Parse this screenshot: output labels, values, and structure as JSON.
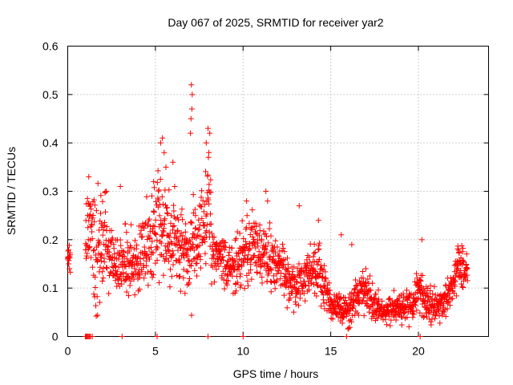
{
  "chart_data": {
    "type": "scatter",
    "title": "Day 067 of 2025, SRMTID for receiver yar2",
    "xlabel": "GPS time / hours",
    "ylabel": "SRMTID / TECUs",
    "xlim": [
      0,
      24
    ],
    "ylim": [
      0,
      0.6
    ],
    "xticks": [
      0,
      5,
      10,
      15,
      20
    ],
    "yticks": [
      0,
      0.1,
      0.2,
      0.3,
      0.4,
      0.5,
      0.6
    ],
    "xtick_labels": [
      "0",
      "5",
      "10",
      "15",
      "20"
    ],
    "ytick_labels": [
      "0",
      "0.1",
      "0.2",
      "0.3",
      "0.4",
      "0.5",
      "0.6"
    ],
    "grid": true,
    "marker": "+",
    "series_color": "#ff0000",
    "profile_x": [
      0,
      1,
      1.1,
      1.3,
      1.6,
      2,
      2.3,
      2.6,
      3,
      3.4,
      3.8,
      4.2,
      4.6,
      5,
      5.3,
      5.6,
      6,
      6.4,
      6.8,
      7.1,
      7.4,
      7.7,
      8,
      8.3,
      8.7,
      9,
      9.5,
      10,
      10.5,
      11,
      11.5,
      12,
      12.5,
      13,
      13.5,
      14,
      14.5,
      15,
      15.5,
      16,
      16.5,
      17,
      17.5,
      18,
      18.5,
      19,
      19.5,
      20,
      20.5,
      21,
      21.5,
      22,
      22.3,
      22.7
    ],
    "profile_y": [
      0.16,
      0.2,
      0.24,
      0.22,
      0.17,
      0.2,
      0.18,
      0.15,
      0.14,
      0.15,
      0.15,
      0.17,
      0.21,
      0.23,
      0.25,
      0.22,
      0.19,
      0.18,
      0.17,
      0.19,
      0.18,
      0.22,
      0.27,
      0.18,
      0.16,
      0.15,
      0.15,
      0.17,
      0.19,
      0.18,
      0.16,
      0.15,
      0.12,
      0.1,
      0.12,
      0.14,
      0.12,
      0.07,
      0.06,
      0.05,
      0.09,
      0.09,
      0.07,
      0.05,
      0.06,
      0.06,
      0.06,
      0.1,
      0.07,
      0.06,
      0.07,
      0.1,
      0.15,
      0.14
    ],
    "profile_spread": [
      0.02,
      0.05,
      0.06,
      0.07,
      0.08,
      0.07,
      0.06,
      0.05,
      0.05,
      0.05,
      0.05,
      0.05,
      0.06,
      0.07,
      0.08,
      0.07,
      0.06,
      0.05,
      0.06,
      0.07,
      0.06,
      0.07,
      0.08,
      0.04,
      0.04,
      0.04,
      0.04,
      0.05,
      0.05,
      0.05,
      0.05,
      0.04,
      0.04,
      0.03,
      0.03,
      0.04,
      0.04,
      0.02,
      0.02,
      0.02,
      0.03,
      0.03,
      0.02,
      0.02,
      0.02,
      0.02,
      0.02,
      0.03,
      0.03,
      0.02,
      0.02,
      0.03,
      0.03,
      0.03
    ],
    "points": [
      {
        "x": 7.05,
        "y": 0.52
      },
      {
        "x": 7.1,
        "y": 0.5
      },
      {
        "x": 7.08,
        "y": 0.47
      },
      {
        "x": 7.03,
        "y": 0.45
      },
      {
        "x": 7.0,
        "y": 0.42
      },
      {
        "x": 8.0,
        "y": 0.43
      },
      {
        "x": 8.1,
        "y": 0.42
      },
      {
        "x": 7.9,
        "y": 0.4
      },
      {
        "x": 8.05,
        "y": 0.38
      },
      {
        "x": 5.4,
        "y": 0.41
      },
      {
        "x": 5.3,
        "y": 0.4
      },
      {
        "x": 5.5,
        "y": 0.38
      },
      {
        "x": 5.6,
        "y": 0.35
      },
      {
        "x": 6.0,
        "y": 0.36
      },
      {
        "x": 6.1,
        "y": 0.31
      },
      {
        "x": 4.9,
        "y": 0.32
      },
      {
        "x": 1.2,
        "y": 0.33
      },
      {
        "x": 2.2,
        "y": 0.3
      },
      {
        "x": 3.0,
        "y": 0.31
      },
      {
        "x": 11.3,
        "y": 0.3
      },
      {
        "x": 11.4,
        "y": 0.28
      },
      {
        "x": 10.2,
        "y": 0.28
      },
      {
        "x": 13.2,
        "y": 0.27
      },
      {
        "x": 14.3,
        "y": 0.24
      },
      {
        "x": 15.6,
        "y": 0.21
      },
      {
        "x": 16.2,
        "y": 0.19
      },
      {
        "x": 20.2,
        "y": 0.2
      },
      {
        "x": 17.0,
        "y": 0.14
      },
      {
        "x": 0.0,
        "y": 0.16
      },
      {
        "x": 0.05,
        "y": 0.15
      },
      {
        "x": 0.1,
        "y": 0.14
      },
      {
        "x": 1.0,
        "y": 0.0
      },
      {
        "x": 1.05,
        "y": 0.0
      },
      {
        "x": 1.1,
        "y": 0.0
      },
      {
        "x": 1.15,
        "y": 0.0
      },
      {
        "x": 1.2,
        "y": 0.0
      },
      {
        "x": 1.25,
        "y": 0.0
      },
      {
        "x": 1.3,
        "y": 0.0
      },
      {
        "x": 1.4,
        "y": 0.0
      },
      {
        "x": 3.1,
        "y": 0.0
      },
      {
        "x": 5.1,
        "y": 0.0
      },
      {
        "x": 8.0,
        "y": 0.0
      },
      {
        "x": 10.0,
        "y": 0.0
      },
      {
        "x": 15.9,
        "y": 0.0
      },
      {
        "x": 20.1,
        "y": 0.0
      }
    ]
  }
}
